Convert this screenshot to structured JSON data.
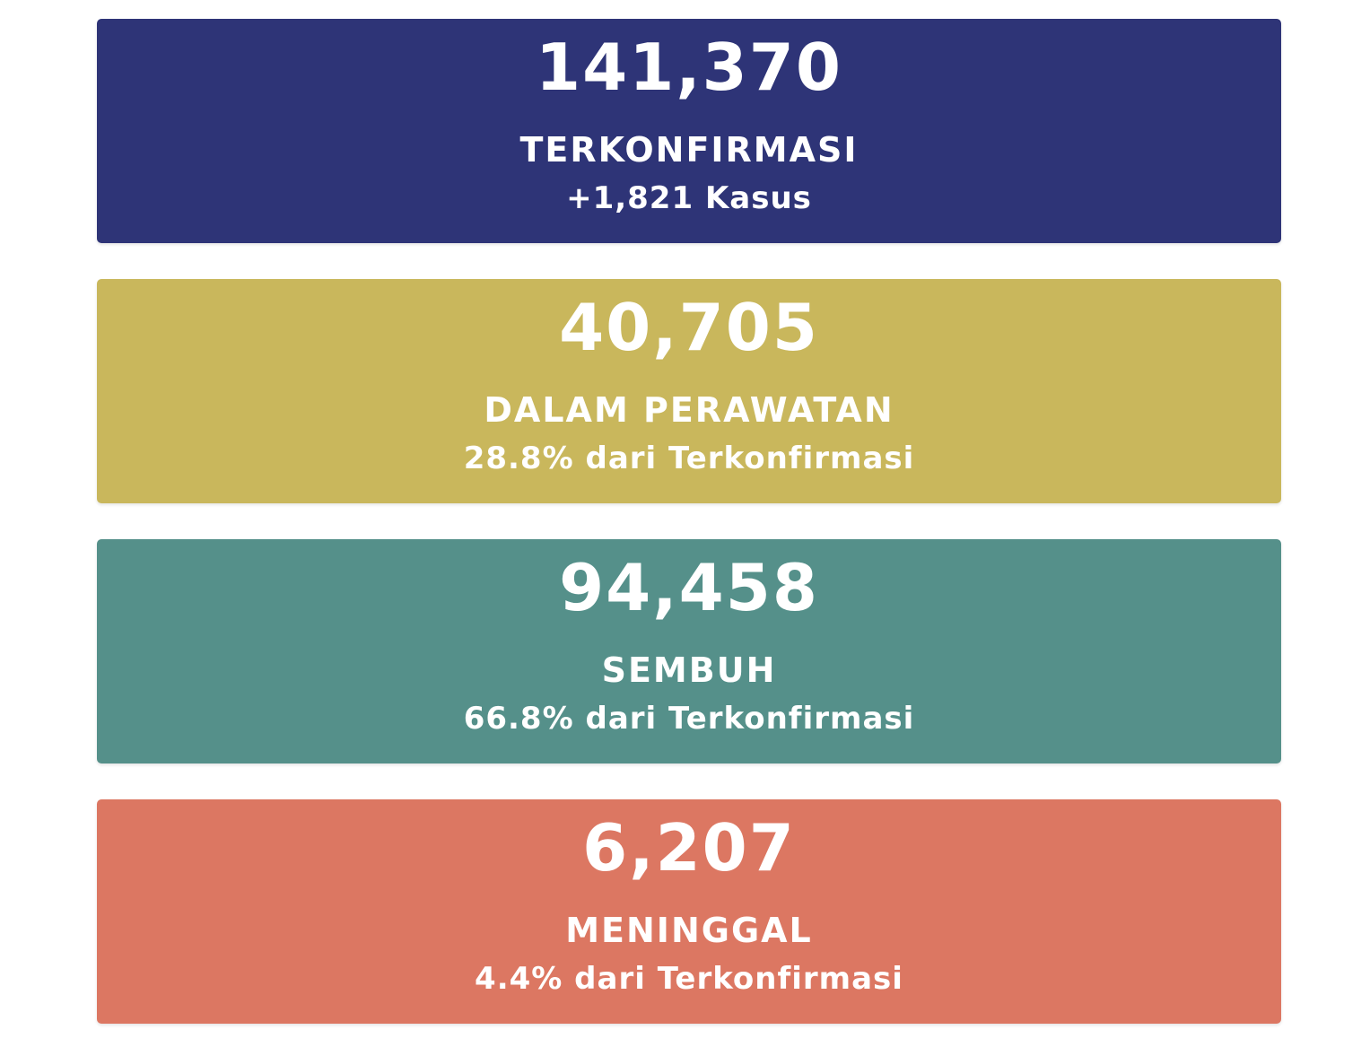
{
  "stats": [
    {
      "value": "141,370",
      "label": "TERKONFIRMASI",
      "sub": "+1,821 Kasus",
      "color": "#2e3477"
    },
    {
      "value": "40,705",
      "label": "DALAM PERAWATAN",
      "sub": "28.8% dari Terkonfirmasi",
      "color": "#c9b75c"
    },
    {
      "value": "94,458",
      "label": "SEMBUH",
      "sub": "66.8% dari Terkonfirmasi",
      "color": "#55908a"
    },
    {
      "value": "6,207",
      "label": "MENINGGAL",
      "sub": "4.4% dari Terkonfirmasi",
      "color": "#dc7762"
    }
  ]
}
